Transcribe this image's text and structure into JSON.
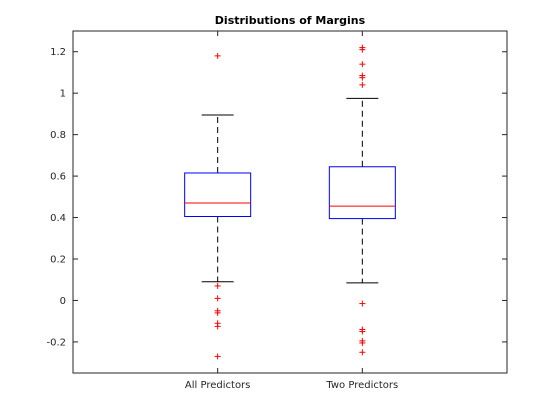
{
  "chart_data": {
    "type": "boxplot",
    "title": "Distributions of Margins",
    "xlabel": "",
    "ylabel": "",
    "ylim": [
      -0.35,
      1.3
    ],
    "yticks": [
      -0.2,
      0,
      0.2,
      0.4,
      0.6,
      0.8,
      1,
      1.2
    ],
    "ytick_labels": [
      "-0.2",
      "0",
      "0.2",
      "0.4",
      "0.6",
      "0.8",
      "1",
      "1.2"
    ],
    "categories": [
      "All Predictors",
      "Two Predictors"
    ],
    "grid": false,
    "colors": {
      "box": "#0000ff",
      "median": "#ff0000",
      "whisker": "#000000",
      "outlier": "#ff0000",
      "axis": "#262626"
    },
    "groups": [
      {
        "label": "All Predictors",
        "whisker_low": 0.09,
        "q1": 0.405,
        "median": 0.47,
        "q3": 0.615,
        "whisker_high": 0.895,
        "outliers": [
          1.18,
          0.07,
          0.01,
          -0.05,
          -0.06,
          -0.11,
          -0.125,
          -0.27
        ]
      },
      {
        "label": "Two Predictors",
        "whisker_low": 0.085,
        "q1": 0.395,
        "median": 0.455,
        "q3": 0.645,
        "whisker_high": 0.975,
        "outliers": [
          1.22,
          1.21,
          1.14,
          1.085,
          1.075,
          1.04,
          -0.015,
          -0.14,
          -0.15,
          -0.195,
          -0.205,
          -0.25
        ]
      }
    ]
  }
}
